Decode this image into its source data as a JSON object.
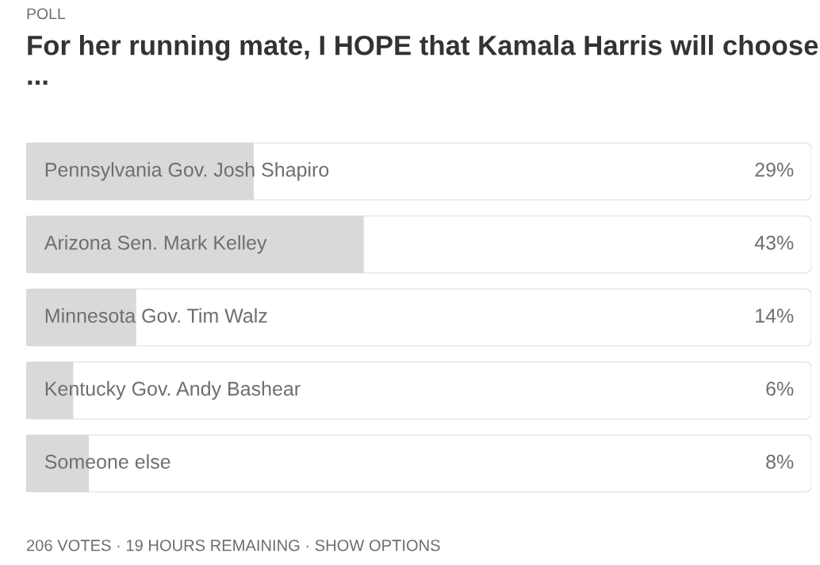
{
  "chart_data": {
    "type": "bar",
    "orientation": "horizontal",
    "subtitle": "POLL",
    "title": "For her running mate, I HOPE that Kamala Harris will choose ...",
    "categories": [
      "Pennsylvania Gov. Josh Shapiro",
      "Arizona Sen. Mark Kelley",
      "Minnesota Gov. Tim Walz",
      "Kentucky Gov. Andy Bashear",
      "Someone else"
    ],
    "values": [
      29,
      43,
      14,
      6,
      8
    ],
    "value_labels": [
      "29%",
      "43%",
      "14%",
      "6%",
      "8%"
    ],
    "color": "#d9d9d9",
    "xlim": [
      0,
      100
    ],
    "tick_labels": false,
    "annotations": [
      "206 VOTES · 19 HOURS REMAINING · SHOW OPTIONS"
    ]
  }
}
